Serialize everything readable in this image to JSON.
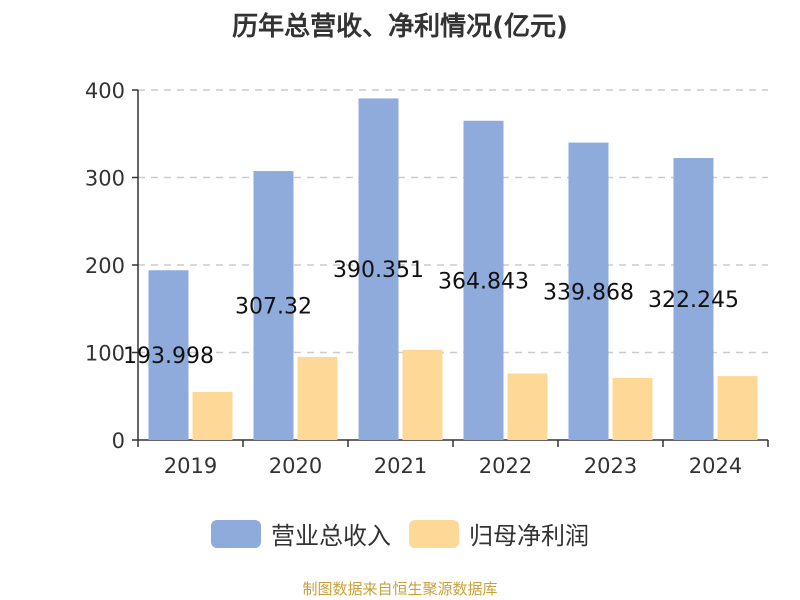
{
  "colors": {
    "revenue": "#8eabdb",
    "profit": "#fdd896",
    "grid": "#cccccc",
    "axis": "#333333",
    "source": "#c9a13a"
  },
  "chart_data": {
    "type": "bar",
    "title": "历年总营收、净利情况(亿元)",
    "categories": [
      "2019",
      "2020",
      "2021",
      "2022",
      "2023",
      "2024"
    ],
    "ylim": [
      0,
      400
    ],
    "yticks": [
      0,
      100,
      200,
      300,
      400
    ],
    "grid": true,
    "legend_position": "bottom",
    "series": [
      {
        "name": "营业总收入",
        "values": [
          193.998,
          307.32,
          390.351,
          364.843,
          339.868,
          322.245
        ],
        "data_labels": [
          "193.998",
          "307.32",
          "390.351",
          "364.843",
          "339.868",
          "322.245"
        ]
      },
      {
        "name": "归母净利润",
        "values": [
          55,
          95,
          103,
          76,
          71,
          73
        ]
      }
    ]
  },
  "source_text": "制图数据来自恒生聚源数据库"
}
